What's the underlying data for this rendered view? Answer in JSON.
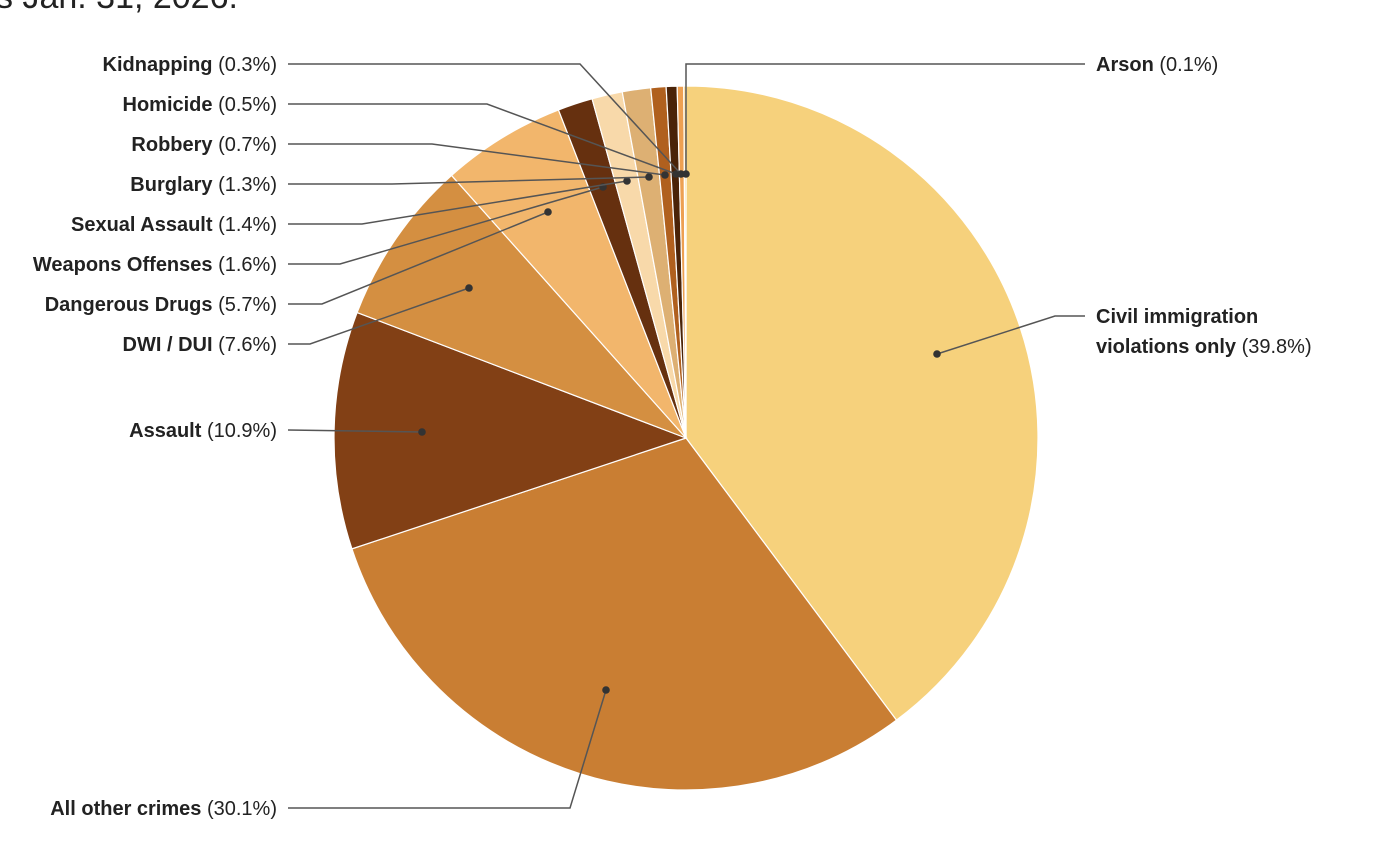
{
  "caption": "s Jan. 31, 2026.",
  "chart_data": {
    "type": "pie",
    "start": "top",
    "direction": "clockwise",
    "slices": [
      {
        "name": "Civil immigration violations only",
        "label_lines": [
          "Civil immigration",
          "violations only"
        ],
        "pct_label": "(39.8%)",
        "value": 39.8,
        "color": "#F6D17C"
      },
      {
        "name": "All other crimes",
        "pct_label": "(30.1%)",
        "value": 30.1,
        "color": "#C97E33"
      },
      {
        "name": "Assault",
        "pct_label": "(10.9%)",
        "value": 10.9,
        "color": "#824015"
      },
      {
        "name": "DWI / DUI",
        "pct_label": "(7.6%)",
        "value": 7.6,
        "color": "#D48F41"
      },
      {
        "name": "Dangerous Drugs",
        "pct_label": "(5.7%)",
        "value": 5.7,
        "color": "#F2B66C"
      },
      {
        "name": "Weapons Offenses",
        "pct_label": "(1.6%)",
        "value": 1.6,
        "color": "#66300F"
      },
      {
        "name": "Sexual Assault",
        "pct_label": "(1.4%)",
        "value": 1.4,
        "color": "#F8D9AA"
      },
      {
        "name": "Burglary",
        "pct_label": "(1.3%)",
        "value": 1.3,
        "color": "#DDB073"
      },
      {
        "name": "Robbery",
        "pct_label": "(0.7%)",
        "value": 0.7,
        "color": "#B0601E"
      },
      {
        "name": "Homicide",
        "pct_label": "(0.5%)",
        "value": 0.5,
        "color": "#4A2308"
      },
      {
        "name": "Kidnapping",
        "pct_label": "(0.3%)",
        "value": 0.3,
        "color": "#EDA052"
      },
      {
        "name": "Arson",
        "pct_label": "(0.1%)",
        "value": 0.1,
        "color": "#F6D17C"
      }
    ]
  }
}
